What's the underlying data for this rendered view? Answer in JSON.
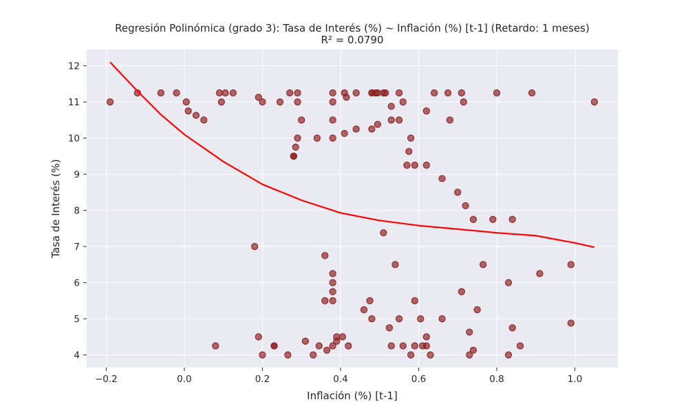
{
  "chart_data": {
    "type": "scatter",
    "title": "Regresión Polinómica (grado 3): Tasa de Interés (%) ~ Inflación (%) [t-1] (Retardo: 1 meses)",
    "subtitle": "R² = 0.0790",
    "xlabel": "Inflación (%) [t-1]",
    "ylabel": "Tasa de Interés (%)",
    "xlim": [
      -0.25,
      1.11
    ],
    "ylim": [
      3.65,
      12.45
    ],
    "xticks": [
      -0.2,
      0.0,
      0.2,
      0.4,
      0.6,
      0.8,
      1.0
    ],
    "xtick_labels": [
      "−0.2",
      "0.0",
      "0.2",
      "0.4",
      "0.6",
      "0.8",
      "1.0"
    ],
    "yticks": [
      4,
      5,
      6,
      7,
      8,
      9,
      10,
      11,
      12
    ],
    "ytick_labels": [
      "4",
      "5",
      "6",
      "7",
      "8",
      "9",
      "10",
      "11",
      "12"
    ],
    "grid": true,
    "colors": {
      "background": "#eaeaf2",
      "grid": "#ffffff",
      "points": "#8b1a1a",
      "fit_line": "#ff0000"
    },
    "points": [
      [
        -0.19,
        11.0
      ],
      [
        -0.12,
        11.25
      ],
      [
        -0.06,
        11.25
      ],
      [
        -0.02,
        11.25
      ],
      [
        0.005,
        11.0
      ],
      [
        0.01,
        10.75
      ],
      [
        0.03,
        10.63
      ],
      [
        0.05,
        10.5
      ],
      [
        0.09,
        11.25
      ],
      [
        0.095,
        11.0
      ],
      [
        0.105,
        11.25
      ],
      [
        0.125,
        11.25
      ],
      [
        0.19,
        11.13
      ],
      [
        0.2,
        11.0
      ],
      [
        0.245,
        11.0
      ],
      [
        0.27,
        11.25
      ],
      [
        0.29,
        11.25
      ],
      [
        0.29,
        11.0
      ],
      [
        0.3,
        10.5
      ],
      [
        0.29,
        10.0
      ],
      [
        0.285,
        9.75
      ],
      [
        0.28,
        9.5
      ],
      [
        0.28,
        9.5
      ],
      [
        0.34,
        10.0
      ],
      [
        0.38,
        11.25
      ],
      [
        0.38,
        11.0
      ],
      [
        0.38,
        10.5
      ],
      [
        0.38,
        10.0
      ],
      [
        0.41,
        11.25
      ],
      [
        0.415,
        11.13
      ],
      [
        0.44,
        11.25
      ],
      [
        0.44,
        10.25
      ],
      [
        0.41,
        10.13
      ],
      [
        0.48,
        11.25
      ],
      [
        0.48,
        11.25
      ],
      [
        0.49,
        11.25
      ],
      [
        0.495,
        11.25
      ],
      [
        0.51,
        11.25
      ],
      [
        0.515,
        11.25
      ],
      [
        0.55,
        11.25
      ],
      [
        0.48,
        10.25
      ],
      [
        0.495,
        10.38
      ],
      [
        0.53,
        10.88
      ],
      [
        0.53,
        10.5
      ],
      [
        0.55,
        10.5
      ],
      [
        0.56,
        11.0
      ],
      [
        0.58,
        10.0
      ],
      [
        0.575,
        9.63
      ],
      [
        0.57,
        9.25
      ],
      [
        0.59,
        9.25
      ],
      [
        0.62,
        9.25
      ],
      [
        0.62,
        10.75
      ],
      [
        0.64,
        11.25
      ],
      [
        0.675,
        11.25
      ],
      [
        0.68,
        10.5
      ],
      [
        0.71,
        11.25
      ],
      [
        0.715,
        11.0
      ],
      [
        0.8,
        11.25
      ],
      [
        0.89,
        11.25
      ],
      [
        1.05,
        11.0
      ],
      [
        0.66,
        8.88
      ],
      [
        0.7,
        8.5
      ],
      [
        0.72,
        8.13
      ],
      [
        0.74,
        7.75
      ],
      [
        0.79,
        7.75
      ],
      [
        0.84,
        7.75
      ],
      [
        0.51,
        7.38
      ],
      [
        0.18,
        7.0
      ],
      [
        0.36,
        6.75
      ],
      [
        0.38,
        6.25
      ],
      [
        0.38,
        6.0
      ],
      [
        0.38,
        5.75
      ],
      [
        0.36,
        5.5
      ],
      [
        0.38,
        5.5
      ],
      [
        0.475,
        5.5
      ],
      [
        0.46,
        5.25
      ],
      [
        0.48,
        5.0
      ],
      [
        0.54,
        6.5
      ],
      [
        0.59,
        5.5
      ],
      [
        0.55,
        5.0
      ],
      [
        0.525,
        4.75
      ],
      [
        0.605,
        5.0
      ],
      [
        0.66,
        5.0
      ],
      [
        0.71,
        5.75
      ],
      [
        0.75,
        5.25
      ],
      [
        0.765,
        6.5
      ],
      [
        0.83,
        6.0
      ],
      [
        0.91,
        6.25
      ],
      [
        0.99,
        6.5
      ],
      [
        0.99,
        4.88
      ],
      [
        0.84,
        4.75
      ],
      [
        0.73,
        4.63
      ],
      [
        0.08,
        4.25
      ],
      [
        0.19,
        4.5
      ],
      [
        0.23,
        4.25
      ],
      [
        0.23,
        4.25
      ],
      [
        0.2,
        4.0
      ],
      [
        0.265,
        4.0
      ],
      [
        0.31,
        4.38
      ],
      [
        0.33,
        4.0
      ],
      [
        0.345,
        4.25
      ],
      [
        0.365,
        4.13
      ],
      [
        0.38,
        4.25
      ],
      [
        0.39,
        4.38
      ],
      [
        0.39,
        4.5
      ],
      [
        0.405,
        4.5
      ],
      [
        0.42,
        4.25
      ],
      [
        0.53,
        4.25
      ],
      [
        0.56,
        4.25
      ],
      [
        0.58,
        4.0
      ],
      [
        0.59,
        4.25
      ],
      [
        0.61,
        4.25
      ],
      [
        0.62,
        4.5
      ],
      [
        0.62,
        4.25
      ],
      [
        0.63,
        4.0
      ],
      [
        0.73,
        4.0
      ],
      [
        0.74,
        4.13
      ],
      [
        0.83,
        4.0
      ],
      [
        0.86,
        4.25
      ]
    ],
    "fit_curve": [
      [
        -0.19,
        12.1
      ],
      [
        -0.12,
        11.3
      ],
      [
        -0.06,
        10.65
      ],
      [
        0.0,
        10.1
      ],
      [
        0.1,
        9.35
      ],
      [
        0.2,
        8.72
      ],
      [
        0.3,
        8.28
      ],
      [
        0.4,
        7.93
      ],
      [
        0.5,
        7.72
      ],
      [
        0.6,
        7.58
      ],
      [
        0.7,
        7.48
      ],
      [
        0.8,
        7.38
      ],
      [
        0.9,
        7.3
      ],
      [
        1.0,
        7.1
      ],
      [
        1.05,
        6.98
      ]
    ]
  }
}
